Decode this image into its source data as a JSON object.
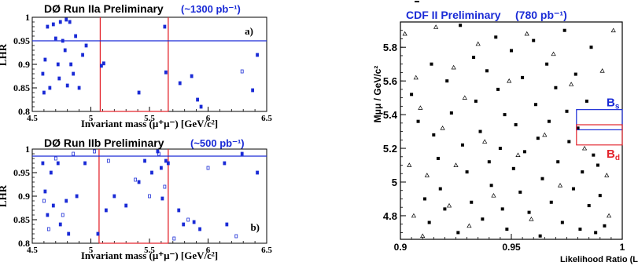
{
  "chart_data": [
    {
      "type": "scatter",
      "panel": "a",
      "title": "DØ Run IIa Preliminary",
      "subtitle": "(~1300 pb⁻¹)",
      "panel_label": "a)",
      "xlabel": "Invariant mass (μ⁺μ⁻) [GeV/c²]",
      "ylabel": "LHR",
      "xlim": [
        4.5,
        6.5
      ],
      "ylim": [
        0.8,
        1.0
      ],
      "xticks": [
        "4.5",
        "5",
        "5.5",
        "6",
        "6.5"
      ],
      "yticks": [
        "0.8",
        "0.85",
        "0.9",
        "0.95",
        "1"
      ],
      "cut_lhr": 0.95,
      "signal_window": [
        5.08,
        5.66
      ],
      "colors": {
        "points": "#1a2bd6",
        "cut": "#1a2bd6",
        "window": "#e3262e",
        "title_accent": "#1a2bd6"
      },
      "points": [
        [
          4.59,
          0.88
        ],
        [
          4.6,
          0.84
        ],
        [
          4.61,
          0.91
        ],
        [
          4.63,
          0.98
        ],
        [
          4.65,
          0.85
        ],
        [
          4.68,
          0.985
        ],
        [
          4.7,
          0.955
        ],
        [
          4.72,
          0.9
        ],
        [
          4.73,
          0.87
        ],
        [
          4.74,
          0.99
        ],
        [
          4.76,
          0.95
        ],
        [
          4.78,
          0.93
        ],
        [
          4.79,
          0.995
        ],
        [
          4.8,
          0.855
        ],
        [
          4.82,
          0.99
        ],
        [
          4.83,
          0.9
        ],
        [
          4.85,
          0.88
        ],
        [
          4.87,
          0.96
        ],
        [
          4.9,
          0.85
        ],
        [
          4.93,
          0.92
        ],
        [
          4.96,
          0.94
        ],
        [
          5.09,
          0.897
        ],
        [
          5.11,
          0.902
        ],
        [
          5.41,
          0.84
        ],
        [
          5.63,
          0.98
        ],
        [
          5.64,
          0.883
        ],
        [
          5.76,
          0.86
        ],
        [
          5.86,
          0.875
        ],
        [
          5.91,
          0.825
        ],
        [
          5.94,
          0.81
        ],
        [
          6.29,
          0.885
        ],
        [
          6.38,
          0.845
        ],
        [
          6.42,
          0.92
        ]
      ]
    },
    {
      "type": "scatter",
      "panel": "b",
      "title": "DØ Run IIb Preliminary",
      "subtitle": "(~500 pb⁻¹)",
      "panel_label": "b)",
      "xlabel": "Invariant mass (μ⁺μ⁻) [GeV/c²]",
      "ylabel": "LHR",
      "xlim": [
        4.5,
        6.5
      ],
      "ylim": [
        0.8,
        1.0
      ],
      "xticks": [
        "4.5",
        "5",
        "5.5",
        "6",
        "6.5"
      ],
      "yticks": [
        "0.8",
        "0.85",
        "0.9",
        "0.95",
        "1"
      ],
      "cut_lhr": 0.985,
      "signal_window": [
        5.07,
        5.66
      ],
      "colors": {
        "points": "#1a2bd6",
        "cut": "#1a2bd6",
        "window": "#e3262e",
        "title_accent": "#1a2bd6"
      },
      "points": [
        [
          4.59,
          0.97
        ],
        [
          4.6,
          0.89
        ],
        [
          4.61,
          0.91
        ],
        [
          4.63,
          0.86
        ],
        [
          4.64,
          0.83
        ],
        [
          4.66,
          0.95
        ],
        [
          4.68,
          0.88
        ],
        [
          4.7,
          0.98
        ],
        [
          4.72,
          0.97
        ],
        [
          4.74,
          0.84
        ],
        [
          4.76,
          0.86
        ],
        [
          4.79,
          0.89
        ],
        [
          4.81,
          0.82
        ],
        [
          4.85,
          0.99
        ],
        [
          4.88,
          0.9
        ],
        [
          4.95,
          0.97
        ],
        [
          5.03,
          0.995
        ],
        [
          5.06,
          0.82
        ],
        [
          5.13,
          0.87
        ],
        [
          5.15,
          0.975
        ],
        [
          5.2,
          0.9
        ],
        [
          5.3,
          0.88
        ],
        [
          5.38,
          0.935
        ],
        [
          5.41,
          0.93
        ],
        [
          5.46,
          0.975
        ],
        [
          5.5,
          0.9
        ],
        [
          5.52,
          0.95
        ],
        [
          5.57,
          0.995
        ],
        [
          5.58,
          0.99
        ],
        [
          5.6,
          0.96
        ],
        [
          5.61,
          0.895
        ],
        [
          5.63,
          0.92
        ],
        [
          5.64,
          0.975
        ],
        [
          5.66,
          0.97
        ],
        [
          5.71,
          0.81
        ],
        [
          5.75,
          0.87
        ],
        [
          5.79,
          0.84
        ],
        [
          5.83,
          0.85
        ],
        [
          5.88,
          0.845
        ],
        [
          5.93,
          0.83
        ],
        [
          6.0,
          0.96
        ],
        [
          6.14,
          0.97
        ],
        [
          6.16,
          0.84
        ],
        [
          6.24,
          0.815
        ],
        [
          6.29,
          0.99
        ],
        [
          6.42,
          0.95
        ]
      ]
    },
    {
      "type": "scatter",
      "title": "CDF II Preliminary",
      "subtitle": "(780 pb⁻¹)",
      "xlabel": "Likelihood Ratio (L",
      "ylabel": "Mμμ / GeV/c²",
      "xlim": [
        0.9,
        1.0
      ],
      "ylim": [
        4.66,
        5.95
      ],
      "xticks": [
        "0.9",
        "0.95",
        "1"
      ],
      "yticks": [
        "4.8",
        "5",
        "5.2",
        "5.4",
        "5.6",
        "5.8"
      ],
      "labels": {
        "bs": "Bs",
        "bd": "Bd"
      },
      "windows": {
        "bs": {
          "mass": [
            5.31,
            5.43
          ],
          "lr": [
            0.99,
            1.0
          ]
        },
        "bd": {
          "mass": [
            5.22,
            5.34
          ],
          "lr": [
            0.99,
            1.0
          ]
        }
      },
      "colors": {
        "title": "#1a2bd6",
        "bs": "#1a2bd6",
        "bd": "#e3262e",
        "squares": "#000000",
        "triangles": "#000000"
      },
      "series": [
        {
          "marker": "square",
          "points": [
            [
              0.905,
              5.52
            ],
            [
              0.908,
              5.36
            ],
            [
              0.911,
              4.9
            ],
            [
              0.913,
              4.76
            ],
            [
              0.914,
              5.7
            ],
            [
              0.915,
              5.28
            ],
            [
              0.917,
              5.14
            ],
            [
              0.918,
              4.96
            ],
            [
              0.92,
              4.84
            ],
            [
              0.921,
              5.6
            ],
            [
              0.923,
              5.41
            ],
            [
              0.926,
              4.7
            ],
            [
              0.927,
              5.93
            ],
            [
              0.928,
              5.22
            ],
            [
              0.93,
              5.06
            ],
            [
              0.932,
              4.88
            ],
            [
              0.933,
              5.74
            ],
            [
              0.934,
              5.48
            ],
            [
              0.936,
              5.3
            ],
            [
              0.937,
              4.78
            ],
            [
              0.939,
              5.66
            ],
            [
              0.94,
              5.12
            ],
            [
              0.941,
              4.98
            ],
            [
              0.943,
              5.86
            ],
            [
              0.944,
              5.55
            ],
            [
              0.945,
              5.2
            ],
            [
              0.946,
              4.84
            ],
            [
              0.947,
              5.4
            ],
            [
              0.948,
              4.72
            ],
            [
              0.95,
              5.78
            ],
            [
              0.951,
              5.08
            ],
            [
              0.952,
              5.34
            ],
            [
              0.954,
              4.94
            ],
            [
              0.955,
              5.62
            ],
            [
              0.956,
              5.18
            ],
            [
              0.958,
              4.82
            ],
            [
              0.96,
              5.84
            ],
            [
              0.961,
              5.46
            ],
            [
              0.962,
              5.26
            ],
            [
              0.963,
              4.68
            ],
            [
              0.964,
              5.02
            ],
            [
              0.966,
              5.7
            ],
            [
              0.967,
              5.36
            ],
            [
              0.968,
              4.88
            ],
            [
              0.97,
              5.56
            ],
            [
              0.971,
              5.12
            ],
            [
              0.973,
              4.76
            ],
            [
              0.974,
              5.9
            ],
            [
              0.975,
              5.42
            ],
            [
              0.976,
              5.24
            ],
            [
              0.978,
              4.96
            ],
            [
              0.979,
              5.64
            ],
            [
              0.98,
              5.32
            ],
            [
              0.981,
              4.72
            ],
            [
              0.982,
              5.06
            ],
            [
              0.984,
              5.48
            ],
            [
              0.985,
              4.86
            ],
            [
              0.986,
              5.8
            ],
            [
              0.987,
              5.16
            ],
            [
              0.988,
              4.7
            ],
            [
              0.989,
              5.1
            ],
            [
              0.99,
              4.92
            ],
            [
              0.992,
              4.74
            ]
          ]
        },
        {
          "marker": "triangle",
          "points": [
            [
              0.902,
              5.88
            ],
            [
              0.904,
              5.1
            ],
            [
              0.906,
              4.8
            ],
            [
              0.907,
              5.62
            ],
            [
              0.909,
              5.44
            ],
            [
              0.91,
              4.68
            ],
            [
              0.912,
              5.04
            ],
            [
              0.916,
              5.92
            ],
            [
              0.919,
              5.32
            ],
            [
              0.922,
              4.86
            ],
            [
              0.924,
              5.68
            ],
            [
              0.925,
              5.1
            ],
            [
              0.929,
              5.5
            ],
            [
              0.931,
              4.74
            ],
            [
              0.935,
              5.82
            ],
            [
              0.938,
              5.24
            ],
            [
              0.942,
              4.92
            ],
            [
              0.949,
              5.6
            ],
            [
              0.953,
              5.16
            ],
            [
              0.957,
              5.88
            ],
            [
              0.959,
              4.78
            ],
            [
              0.965,
              5.28
            ],
            [
              0.969,
              5.76
            ],
            [
              0.972,
              4.98
            ],
            [
              0.977,
              5.58
            ],
            [
              0.983,
              5.2
            ],
            [
              0.991,
              5.66
            ],
            [
              0.993,
              5.04
            ],
            [
              0.994,
              4.8
            ],
            [
              0.996,
              5.9
            ]
          ]
        }
      ]
    }
  ]
}
